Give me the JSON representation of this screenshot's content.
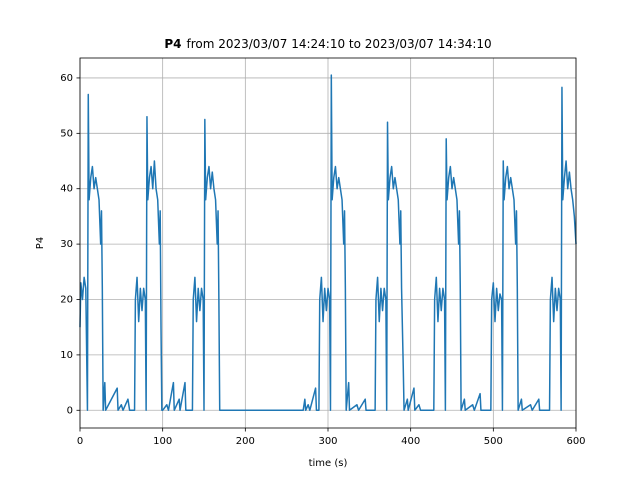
{
  "chart_data": {
    "type": "line",
    "title_bold": "P4",
    "title": "from 2023/03/07 14:24:10 to 2023/03/07 14:34:10",
    "xlabel": "time (s)",
    "ylabel": "P4",
    "color": "#1f77b4",
    "grid": true,
    "xlim": [
      0,
      600
    ],
    "xticks": [
      0,
      100,
      200,
      300,
      400,
      500,
      600
    ],
    "ylim": [
      -3.2,
      63.6
    ],
    "yticks": [
      0,
      10,
      20,
      30,
      40,
      50,
      60
    ],
    "x": [
      0,
      1,
      3,
      5,
      7,
      9,
      10,
      11,
      13,
      15,
      17,
      19,
      21,
      23,
      25,
      26,
      27,
      28,
      30,
      31,
      45,
      46,
      50,
      52,
      58,
      60,
      66,
      67,
      69,
      71,
      73,
      75,
      77,
      79,
      80,
      81,
      82,
      84,
      86,
      88,
      90,
      92,
      94,
      96,
      97,
      98,
      99,
      100,
      105,
      107,
      113,
      114,
      120,
      121,
      127,
      128,
      136,
      137,
      139,
      141,
      143,
      145,
      147,
      149,
      150,
      151,
      152,
      154,
      156,
      158,
      160,
      162,
      164,
      166,
      167,
      168,
      169,
      172,
      270,
      272,
      273,
      276,
      278,
      285,
      286,
      289,
      290,
      292,
      294,
      296,
      298,
      300,
      302,
      303,
      304,
      305,
      307,
      309,
      311,
      313,
      315,
      317,
      319,
      320,
      321,
      322,
      325,
      326,
      335,
      337,
      345,
      346,
      350,
      357,
      358,
      360,
      362,
      364,
      366,
      368,
      370,
      371,
      372,
      373,
      375,
      377,
      379,
      381,
      383,
      385,
      387,
      388,
      389,
      391,
      392,
      396,
      397,
      404,
      405,
      410,
      412,
      428,
      429,
      431,
      433,
      435,
      437,
      439,
      441,
      442,
      443,
      444,
      446,
      448,
      450,
      452,
      454,
      456,
      458,
      459,
      460,
      461,
      465,
      466,
      475,
      477,
      484,
      485,
      497,
      498,
      500,
      502,
      504,
      506,
      508,
      510,
      511,
      512,
      513,
      515,
      517,
      519,
      521,
      523,
      525,
      527,
      528,
      529,
      530,
      534,
      535,
      545,
      547,
      555,
      556,
      568,
      569,
      571,
      573,
      575,
      577,
      579,
      581,
      582,
      583,
      584,
      586,
      588,
      590,
      592,
      594,
      596,
      598,
      600
    ],
    "values": [
      15,
      23,
      20,
      24,
      22,
      0,
      57,
      38,
      42,
      44,
      40,
      42,
      40,
      38,
      30,
      36,
      22,
      0,
      5,
      0,
      4,
      0,
      1,
      0,
      2,
      0,
      0,
      20,
      24,
      16,
      22,
      18,
      22,
      20,
      0,
      53,
      38,
      42,
      44,
      40,
      45,
      40,
      38,
      30,
      36,
      15,
      0,
      0,
      1,
      0,
      5,
      0,
      2,
      0,
      5,
      0,
      0,
      20,
      24,
      16,
      22,
      18,
      22,
      20,
      0,
      52.5,
      38,
      42,
      44,
      40,
      43,
      40,
      38,
      30,
      36,
      20,
      0,
      0,
      0,
      2,
      0,
      1,
      0,
      4,
      0,
      0,
      20,
      24,
      16,
      22,
      18,
      22,
      20,
      0,
      60.5,
      38,
      42,
      44,
      40,
      42,
      40,
      38,
      30,
      36,
      22,
      0,
      5,
      0,
      1,
      0,
      2,
      0,
      0,
      0,
      20,
      24,
      16,
      22,
      18,
      22,
      20,
      0,
      52,
      38,
      42,
      44,
      40,
      42,
      40,
      38,
      30,
      36,
      22,
      8,
      0,
      2,
      0,
      4,
      0,
      1,
      0,
      0,
      20,
      24,
      16,
      22,
      18,
      22,
      20,
      0,
      49,
      38,
      42,
      44,
      40,
      42,
      40,
      38,
      30,
      36,
      22,
      0,
      2,
      0,
      1,
      0,
      3,
      0,
      0,
      20,
      23,
      16,
      22,
      18,
      21,
      20,
      0,
      45,
      38,
      42,
      44,
      40,
      42,
      40,
      38,
      30,
      36,
      22,
      0,
      2,
      0,
      1,
      0,
      2,
      0,
      0,
      20,
      24,
      16,
      22,
      18,
      22,
      20,
      0,
      58.3,
      38,
      42,
      45,
      40,
      43,
      40,
      38,
      35,
      30
    ]
  }
}
